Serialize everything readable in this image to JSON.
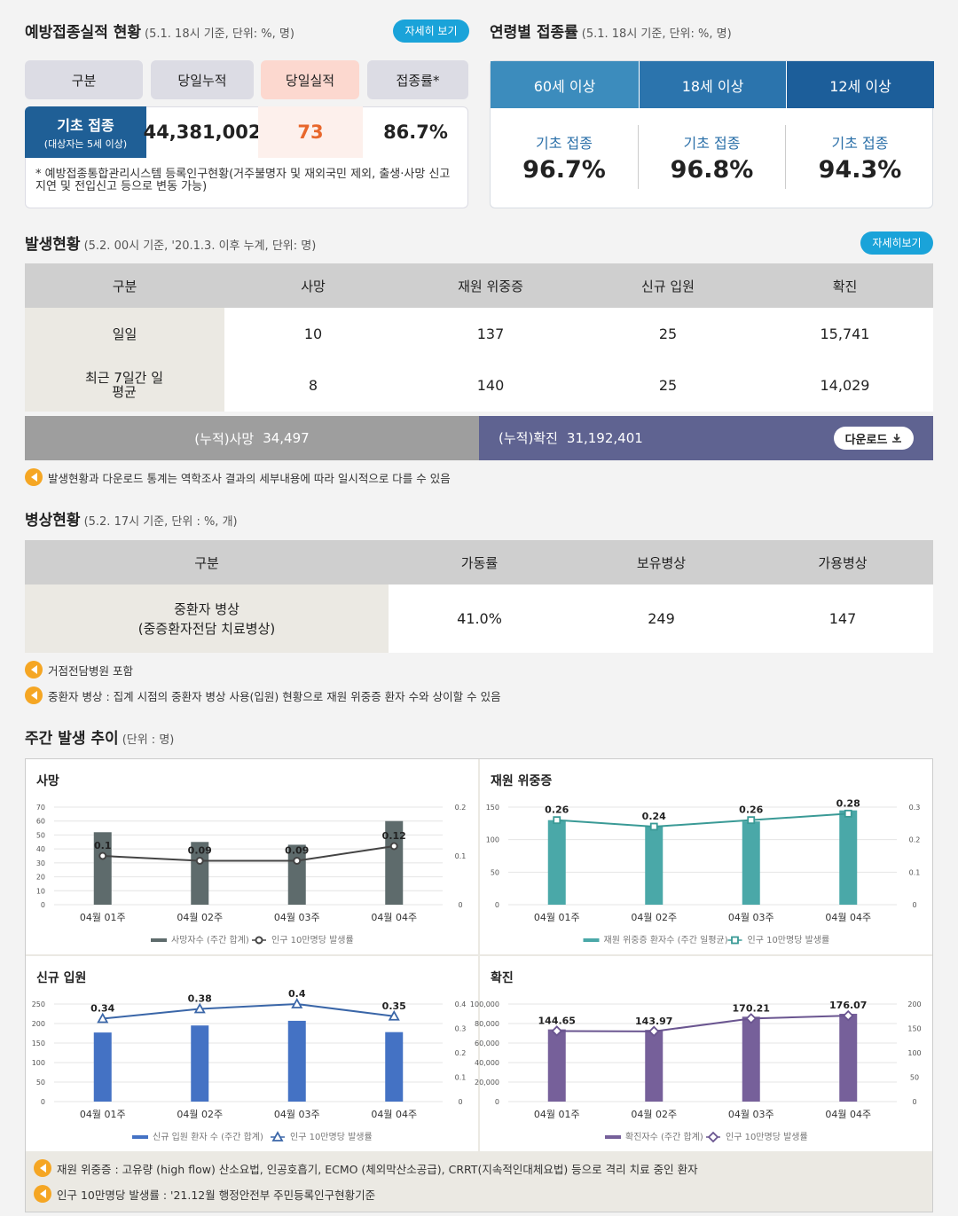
{
  "vacc": {
    "title": "예방접종실적 현황",
    "sub": "(5.1. 18시 기준, 단위: %, 명)",
    "more": "자세히 보기",
    "headers": [
      "구분",
      "당일누적",
      "당일실적",
      "접종률*"
    ],
    "row_label": "기초 접종",
    "row_sub": "(대상자는 5세 이상)",
    "cumulative": "44,381,002",
    "daily": "73",
    "rate": "86.7%",
    "note": "* 예방접종통합관리시스템 등록인구현황(거주불명자 및 재외국민 제외, 출생·사망 신고 지연 및 전입신고 등으로 변동 가능)"
  },
  "age": {
    "title": "연령별 접종률",
    "sub": "(5.1. 18시 기준, 단위: %, 명)",
    "tabs": [
      "60세 이상",
      "18세 이상",
      "12세 이상"
    ],
    "label": "기초 접종",
    "values": [
      "96.7%",
      "96.8%",
      "94.3%"
    ]
  },
  "occ": {
    "title": "발생현황",
    "sub": "(5.2. 00시 기준, '20.1.3. 이후 누계, 단위: 명)",
    "more": "자세히보기",
    "headers": [
      "구분",
      "사망",
      "재원 위중증",
      "신규 입원",
      "확진"
    ],
    "rows": [
      {
        "label": "일일",
        "v": [
          "10",
          "137",
          "25",
          "15,741"
        ]
      },
      {
        "label": "최근 7일간 일평균",
        "v": [
          "8",
          "140",
          "25",
          "14,029"
        ]
      }
    ],
    "cum_death_label": "(누적)사망",
    "cum_death": "34,497",
    "cum_conf_label": "(누적)확진",
    "cum_conf": "31,192,401",
    "download": "다운로드",
    "note": "발생현황과 다운로드 통계는 역학조사 결과의 세부내용에 따라 일시적으로 다를 수 있음"
  },
  "beds": {
    "title": "병상현황",
    "sub": "(5.2. 17시 기준, 단위 : %, 개)",
    "headers": [
      "구분",
      "가동률",
      "보유병상",
      "가용병상"
    ],
    "row_label": "중환자 병상",
    "row_label2": "(중증환자전담 치료병상)",
    "v": [
      "41.0%",
      "249",
      "147"
    ],
    "notes": [
      "거점전담병원 포함",
      "중환자 병상 : 집계 시점의 중환자 병상 사용(입원) 현황으로 재원 위중증 환자 수와 상이할 수 있음"
    ]
  },
  "weekly": {
    "title": "주간 발생 추이",
    "sub": "(단위 : 명)",
    "notes": [
      "재원 위중증 : 고유량 (high flow) 산소요법, 인공호흡기, ECMO (체외막산소공급), CRRT(지속적인대체요법) 등으로 격리 치료 중인 환자",
      "인구 10만명당 발생률 : '21.12월 행정안전부 주민등록인구현황기준"
    ]
  },
  "chart_data": [
    {
      "type": "bar",
      "title": "사망",
      "categories": [
        "04월 01주",
        "04월 02주",
        "04월 03주",
        "04월 04주"
      ],
      "series": [
        {
          "name": "사망자수 (주간 합계)",
          "values": [
            52,
            45,
            43,
            60
          ]
        },
        {
          "name": "인구 10만명당 발생률",
          "values": [
            0.1,
            0.09,
            0.09,
            0.12
          ]
        }
      ],
      "ylim": [
        0,
        70
      ],
      "yticks": [
        0,
        10,
        20,
        30,
        40,
        50,
        60,
        70
      ],
      "y2lim": [
        0,
        0.2
      ],
      "y2ticks": [
        "0",
        "0.1",
        "0.2"
      ],
      "y2tickvals": [
        0,
        0.1,
        0.2
      ],
      "yticklabels": [
        "0",
        "10",
        "20",
        "30",
        "40",
        "50",
        "60",
        "70"
      ],
      "bar_color": "#5e6b6c",
      "line_color": "#444444",
      "marker": "circle",
      "labels": [
        "0.1",
        "0.09",
        "0.09",
        "0.12"
      ]
    },
    {
      "type": "bar",
      "title": "재원 위중증",
      "categories": [
        "04월 01주",
        "04월 02주",
        "04월 03주",
        "04월 04주"
      ],
      "series": [
        {
          "name": "재원 위중증 환자수 (주간 일평균)",
          "values": [
            130,
            121,
            128,
            145
          ]
        },
        {
          "name": "인구 10만명당 발생률",
          "values": [
            0.26,
            0.24,
            0.26,
            0.28
          ]
        }
      ],
      "ylim": [
        0,
        150
      ],
      "yticks": [
        0,
        50,
        100,
        150
      ],
      "yticklabels": [
        "0",
        "50",
        "100",
        "150"
      ],
      "y2lim": [
        0,
        0.3
      ],
      "y2ticks": [
        "0",
        "0.1",
        "0.2",
        "0.3"
      ],
      "y2tickvals": [
        0,
        0.1,
        0.2,
        0.3
      ],
      "bar_color": "#4aa8a8",
      "line_color": "#3a9a96",
      "marker": "square",
      "labels": [
        "0.26",
        "0.24",
        "0.26",
        "0.28"
      ]
    },
    {
      "type": "bar",
      "title": "신규 입원",
      "categories": [
        "04월 01주",
        "04월 02주",
        "04월 03주",
        "04월 04주"
      ],
      "series": [
        {
          "name": "신규 입원 환자 수 (주간 합계)",
          "values": [
            177,
            195,
            207,
            178
          ]
        },
        {
          "name": "인구 10만명당 발생률",
          "values": [
            0.34,
            0.38,
            0.4,
            0.35
          ]
        }
      ],
      "ylim": [
        0,
        250
      ],
      "yticks": [
        0,
        50,
        100,
        150,
        200,
        250
      ],
      "yticklabels": [
        "0",
        "50",
        "100",
        "150",
        "200",
        "250"
      ],
      "y2lim": [
        0,
        0.4
      ],
      "y2ticks": [
        "0",
        "0.1",
        "0.2",
        "0.3",
        "0.4"
      ],
      "y2tickvals": [
        0,
        0.1,
        0.2,
        0.3,
        0.4
      ],
      "bar_color": "#4472c4",
      "line_color": "#3a66a8",
      "marker": "triangle",
      "labels": [
        "0.34",
        "0.38",
        "0.4",
        "0.35"
      ]
    },
    {
      "type": "bar",
      "title": "확진",
      "categories": [
        "04월 01주",
        "04월 02주",
        "04월 03주",
        "04월 04주"
      ],
      "series": [
        {
          "name": "확진자수 (주간 합계)",
          "values": [
            74000,
            73500,
            87000,
            90000
          ]
        },
        {
          "name": "인구 10만명당 발생률",
          "values": [
            144.65,
            143.97,
            170.21,
            176.07
          ]
        }
      ],
      "ylim": [
        0,
        100000
      ],
      "yticks": [
        0,
        20000,
        40000,
        60000,
        80000,
        100000
      ],
      "yticklabels": [
        "0",
        "20,000",
        "40,000",
        "60,000",
        "80,000",
        "100,000"
      ],
      "y2lim": [
        0,
        200
      ],
      "y2ticks": [
        "0",
        "50",
        "100",
        "150",
        "200"
      ],
      "y2tickvals": [
        0,
        50,
        100,
        150,
        200
      ],
      "bar_color": "#76609a",
      "line_color": "#6a5590",
      "marker": "diamond",
      "labels": [
        "144.65",
        "143.97",
        "170.21",
        "176.07"
      ]
    }
  ]
}
